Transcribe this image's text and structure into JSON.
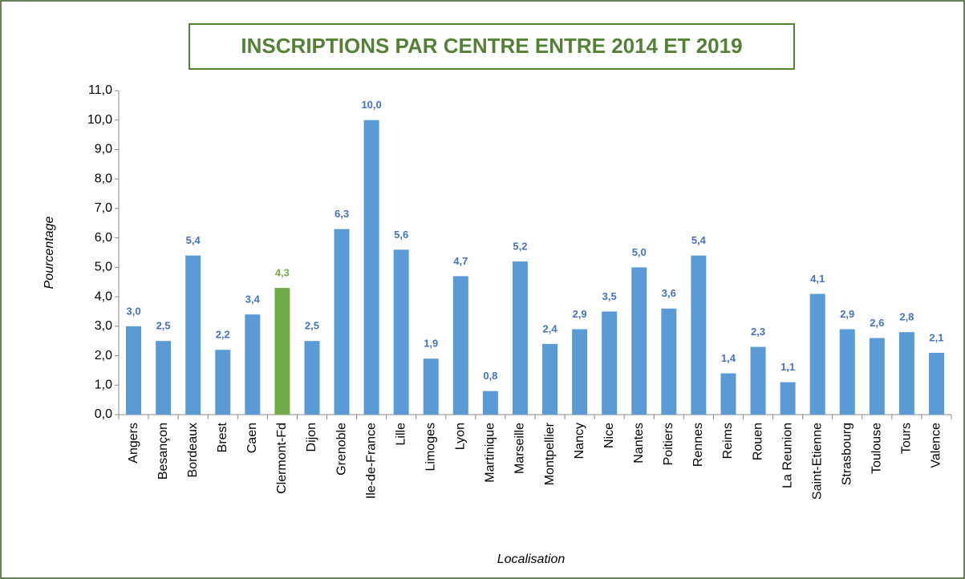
{
  "chart_data": {
    "type": "bar",
    "title": "INSCRIPTIONS PAR CENTRE ENTRE 2014 ET 2019",
    "x_label": "Localisation",
    "y_label": "Pourcentage",
    "categories": [
      "Angers",
      "Besançon",
      "Bordeaux",
      "Brest",
      "Caen",
      "Clermont-Fd",
      "Dijon",
      "Grenoble",
      "Ile-de-France",
      "Lille",
      "Limoges",
      "Lyon",
      "Martinique",
      "Marseille",
      "Montpellier",
      "Nancy",
      "Nice",
      "Nantes",
      "Poitiers",
      "Rennes",
      "Reims",
      "Rouen",
      "La Reunion",
      "Saint-Etienne",
      "Strasbourg",
      "Toulouse",
      "Tours",
      "Valence"
    ],
    "values": [
      3.0,
      2.5,
      5.4,
      2.2,
      3.4,
      4.3,
      2.5,
      6.3,
      10.0,
      5.6,
      1.9,
      4.7,
      0.8,
      5.2,
      2.4,
      2.9,
      3.5,
      5.0,
      3.6,
      5.4,
      1.4,
      2.3,
      1.1,
      4.1,
      2.9,
      2.6,
      2.8,
      2.1
    ],
    "value_labels": [
      "3,0",
      "2,5",
      "5,4",
      "2,2",
      "3,4",
      "4,3",
      "2,5",
      "6,3",
      "10,0",
      "5,6",
      "1,9",
      "4,7",
      "0,8",
      "5,2",
      "2,4",
      "2,9",
      "3,5",
      "5,0",
      "3,6",
      "5,4",
      "1,4",
      "2,3",
      "1,1",
      "4,1",
      "2,9",
      "2,6",
      "2,8",
      "2,1"
    ],
    "colors": [
      "#5b9bd5",
      "#5b9bd5",
      "#5b9bd5",
      "#5b9bd5",
      "#5b9bd5",
      "#70ad47",
      "#5b9bd5",
      "#5b9bd5",
      "#5b9bd5",
      "#5b9bd5",
      "#5b9bd5",
      "#5b9bd5",
      "#5b9bd5",
      "#5b9bd5",
      "#5b9bd5",
      "#5b9bd5",
      "#5b9bd5",
      "#5b9bd5",
      "#5b9bd5",
      "#5b9bd5",
      "#5b9bd5",
      "#5b9bd5",
      "#5b9bd5",
      "#5b9bd5",
      "#5b9bd5",
      "#5b9bd5",
      "#5b9bd5",
      "#5b9bd5"
    ],
    "ylim": [
      0,
      11
    ],
    "yticks": [
      {
        "value": 0,
        "label": "0,0"
      },
      {
        "value": 1,
        "label": "1,0"
      },
      {
        "value": 2,
        "label": "2,0"
      },
      {
        "value": 3,
        "label": "3,0"
      },
      {
        "value": 4,
        "label": "4,0"
      },
      {
        "value": 5,
        "label": "5,0"
      },
      {
        "value": 6,
        "label": "6,0"
      },
      {
        "value": 7,
        "label": "7,0"
      },
      {
        "value": 8,
        "label": "8,0"
      },
      {
        "value": 9,
        "label": "9,0"
      },
      {
        "value": 10,
        "label": "10,0"
      },
      {
        "value": 11,
        "label": "11,0"
      }
    ],
    "grid": false
  }
}
